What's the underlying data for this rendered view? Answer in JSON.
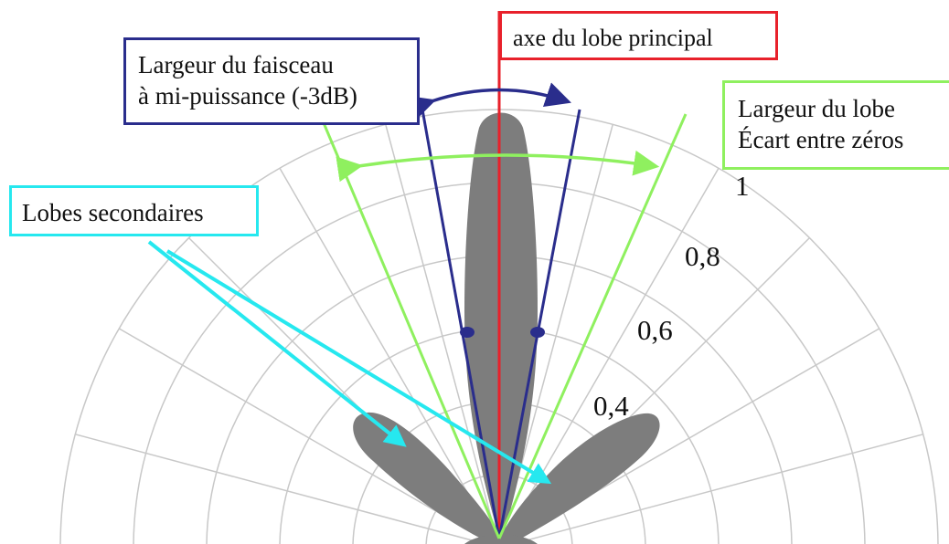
{
  "labels": {
    "main_axis": "axe du lobe principal",
    "half_power_line1": "Largeur du faisceau",
    "half_power_line2": "à mi-puissance (-3dB)",
    "lobe_width_line1": "Largeur du lobe",
    "lobe_width_line2": "Écart entre zéros",
    "side_lobes": "Lobes secondaires"
  },
  "radial_ticks": [
    "1",
    "0,8",
    "0,6",
    "0,4"
  ],
  "colors": {
    "main_axis": "#e8212b",
    "half_power": "#2a2d8c",
    "lobe_width": "#8ff05f",
    "side_lobes": "#26e8ef",
    "lobe_fill": "#7d7d7d",
    "grid": "#c8c8c8"
  }
}
